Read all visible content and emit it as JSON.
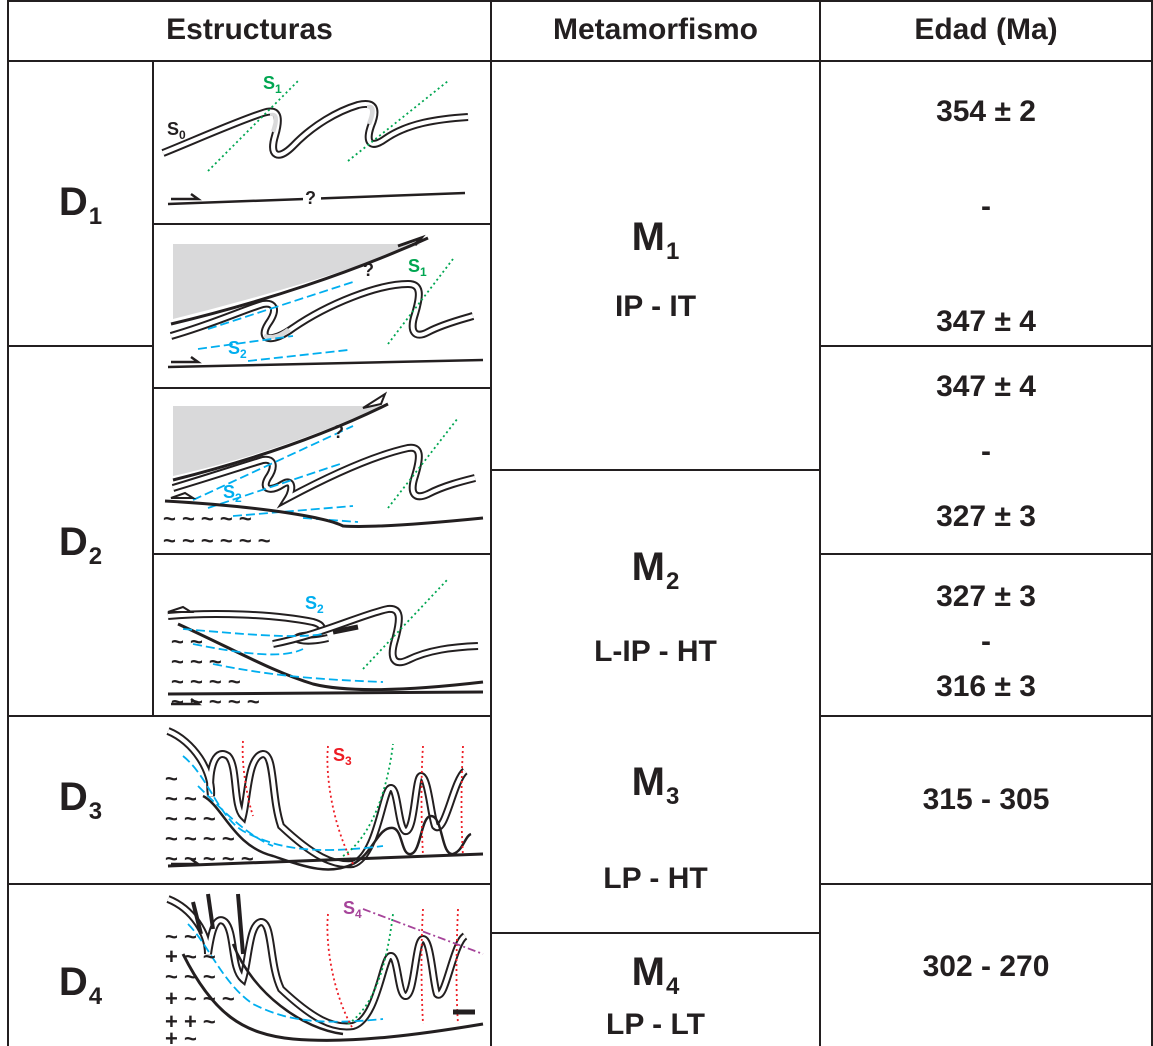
{
  "headers": {
    "structures": "Estructuras",
    "metamorphism": "Metamorfismo",
    "age": "Edad (Ma)"
  },
  "deformation": [
    {
      "name": "D",
      "sub": "1"
    },
    {
      "name": "D",
      "sub": "2"
    },
    {
      "name": "D",
      "sub": "3"
    },
    {
      "name": "D",
      "sub": "4"
    }
  ],
  "metamorphism": [
    {
      "name": "M",
      "sub": "1",
      "conditions": "IP - IT"
    },
    {
      "name": "M",
      "sub": "2",
      "conditions": "L-IP - HT"
    },
    {
      "name": "M",
      "sub": "3",
      "conditions": "LP - HT"
    },
    {
      "name": "M",
      "sub": "4",
      "conditions": "LP - LT"
    }
  ],
  "ages": {
    "d1": {
      "top": "354 ± 2",
      "mid": "-",
      "bottom": "347 ± 4"
    },
    "d2a": {
      "top": "347 ± 4",
      "mid": "-",
      "bottom": "327 ± 3"
    },
    "d2b": {
      "top": "327 ± 3",
      "mid": "-",
      "bottom": "316 ± 3"
    },
    "d3": "315 - 305",
    "d4": "302 - 270"
  },
  "sketch_labels": {
    "s0": "S",
    "s0_sub": "0",
    "s1": "S",
    "s1_sub": "1",
    "s2": "S",
    "s2_sub": "2",
    "s3": "S",
    "s3_sub": "3",
    "s4": "S",
    "s4_sub": "4",
    "unknown": "?"
  },
  "colors": {
    "border": "#231f20",
    "s1": "#00a651",
    "s2": "#00aeef",
    "s3": "#ed1c24",
    "s4": "#a6449a",
    "shade": "#d9d9da"
  }
}
